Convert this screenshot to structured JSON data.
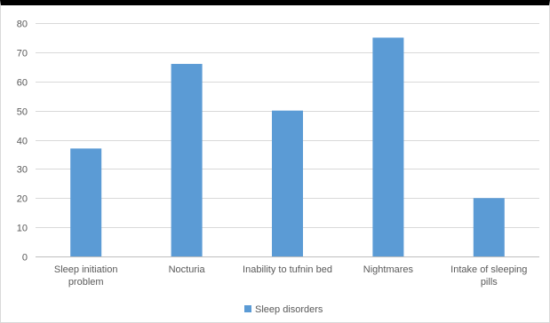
{
  "chart_data": {
    "type": "bar",
    "title": "",
    "xlabel": "",
    "ylabel": "",
    "categories": [
      [
        "Sleep initiation",
        "problem"
      ],
      [
        "Nocturia"
      ],
      [
        "Inability to tufnin bed"
      ],
      [
        "Nightmares"
      ],
      [
        "Intake of sleeping",
        "pills"
      ]
    ],
    "series": [
      {
        "name": "Sleep disorders",
        "values": [
          37,
          66,
          50,
          75,
          20
        ],
        "color": "#5b9bd5"
      }
    ],
    "ylim": [
      0,
      80
    ],
    "yticks": [
      0,
      10,
      20,
      30,
      40,
      50,
      60,
      70,
      80
    ],
    "grid": true,
    "legend": "bottom-center"
  }
}
